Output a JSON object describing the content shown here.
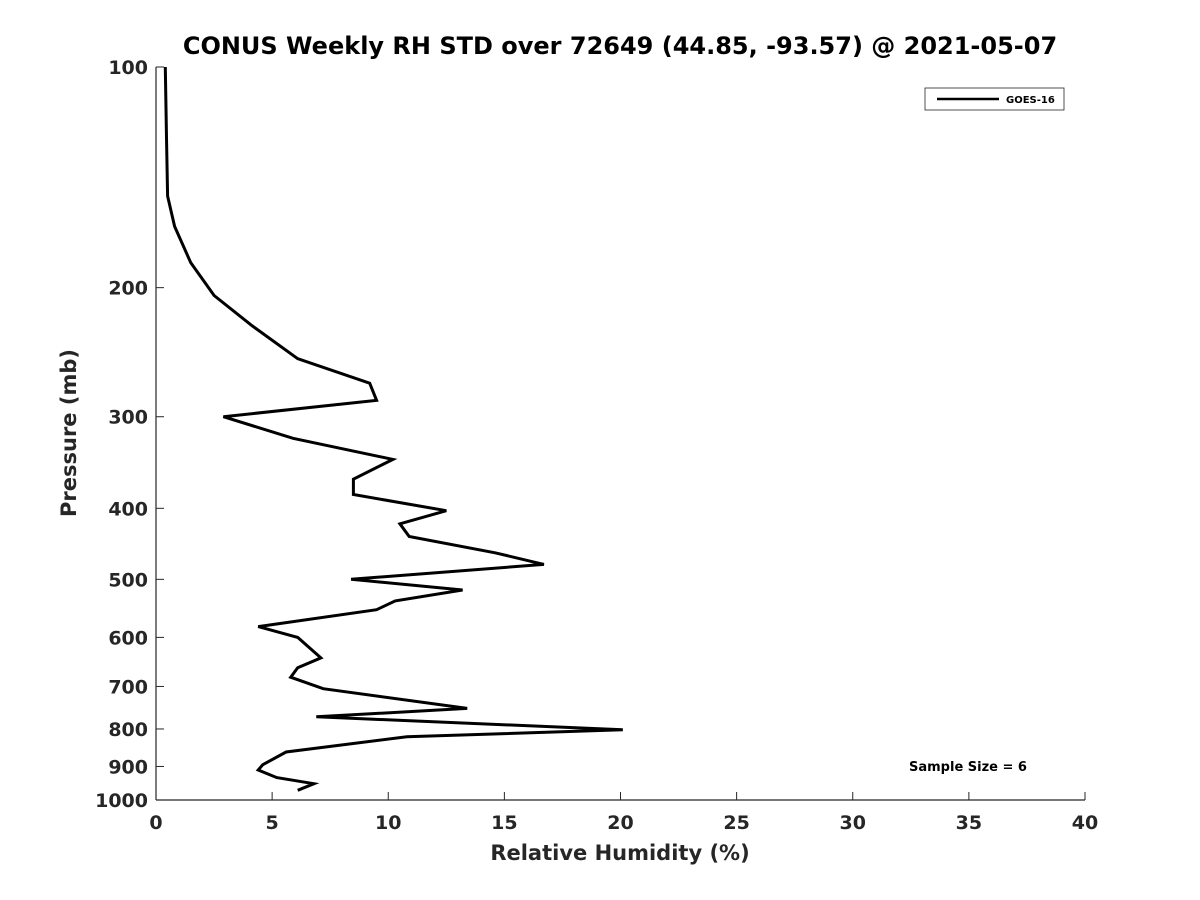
{
  "chart_data": {
    "type": "line",
    "title": "CONUS Weekly RH STD over 72649 (44.85, -93.57) @ 2021-05-07",
    "xlabel": "Relative Humidity (%)",
    "ylabel": "Pressure (mb)",
    "xlim": [
      0,
      40
    ],
    "ylim": [
      100,
      1000
    ],
    "yscale": "log",
    "y_reversed": true,
    "grid": false,
    "legend_position": "top-right",
    "x_ticks": [
      "0",
      "5",
      "10",
      "15",
      "20",
      "25",
      "30",
      "35",
      "40"
    ],
    "y_ticks": [
      "100",
      "200",
      "300",
      "400",
      "500",
      "600",
      "700",
      "800",
      "900",
      "1000"
    ],
    "series": [
      {
        "name": "GOES-16",
        "color": "#000000",
        "points": [
          {
            "rh": 0.4,
            "p": 100
          },
          {
            "rh": 0.45,
            "p": 125
          },
          {
            "rh": 0.5,
            "p": 150
          },
          {
            "rh": 0.8,
            "p": 165
          },
          {
            "rh": 1.5,
            "p": 185
          },
          {
            "rh": 2.5,
            "p": 205
          },
          {
            "rh": 4.1,
            "p": 225
          },
          {
            "rh": 6.1,
            "p": 250
          },
          {
            "rh": 9.2,
            "p": 270
          },
          {
            "rh": 9.5,
            "p": 285
          },
          {
            "rh": 2.9,
            "p": 300
          },
          {
            "rh": 5.9,
            "p": 321
          },
          {
            "rh": 10.2,
            "p": 343
          },
          {
            "rh": 8.5,
            "p": 365
          },
          {
            "rh": 8.5,
            "p": 383
          },
          {
            "rh": 12.5,
            "p": 403
          },
          {
            "rh": 10.5,
            "p": 420
          },
          {
            "rh": 10.9,
            "p": 437
          },
          {
            "rh": 14.6,
            "p": 460
          },
          {
            "rh": 16.7,
            "p": 477
          },
          {
            "rh": 8.4,
            "p": 500
          },
          {
            "rh": 13.2,
            "p": 517
          },
          {
            "rh": 10.3,
            "p": 535
          },
          {
            "rh": 9.5,
            "p": 550
          },
          {
            "rh": 4.4,
            "p": 580
          },
          {
            "rh": 6.1,
            "p": 600
          },
          {
            "rh": 7.1,
            "p": 640
          },
          {
            "rh": 6.1,
            "p": 660
          },
          {
            "rh": 5.8,
            "p": 680
          },
          {
            "rh": 7.2,
            "p": 705
          },
          {
            "rh": 13.4,
            "p": 750
          },
          {
            "rh": 6.9,
            "p": 770
          },
          {
            "rh": 20.1,
            "p": 802
          },
          {
            "rh": 10.8,
            "p": 820
          },
          {
            "rh": 5.6,
            "p": 860
          },
          {
            "rh": 4.6,
            "p": 895
          },
          {
            "rh": 4.4,
            "p": 910
          },
          {
            "rh": 5.2,
            "p": 932
          },
          {
            "rh": 6.8,
            "p": 950
          },
          {
            "rh": 6.1,
            "p": 970
          }
        ]
      }
    ],
    "annotations": [
      "Sample Size = 6"
    ]
  }
}
